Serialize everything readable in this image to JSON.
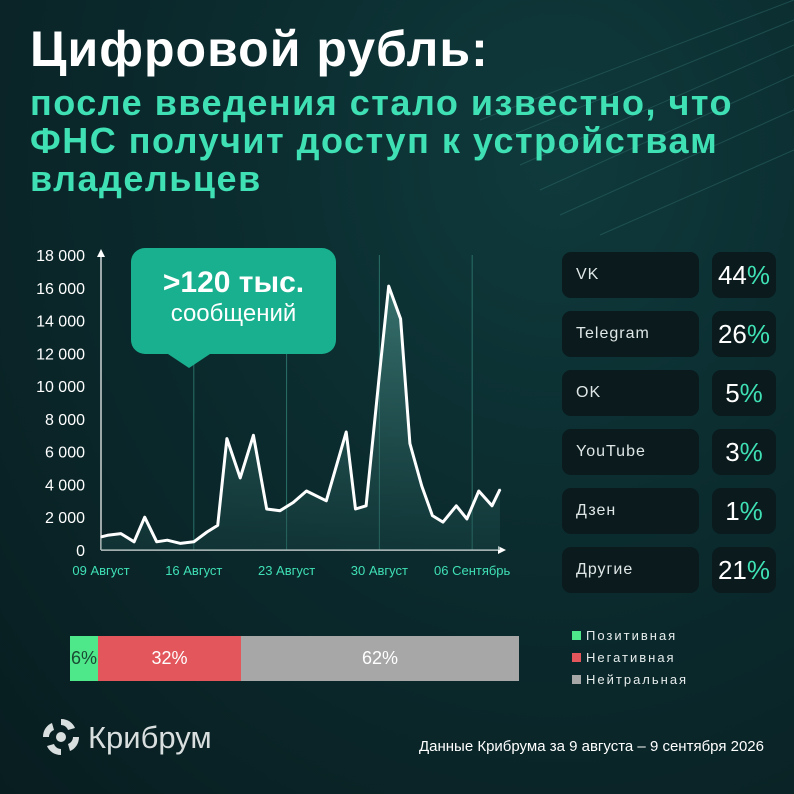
{
  "title": "Цифровой рубль:",
  "subtitle": "после введения стало известно, что ФНС получит доступ к устройствам владельцев",
  "callout": {
    "main": ">120 тыс.",
    "sub": "сообщений"
  },
  "colors": {
    "accent": "#3fe0b4",
    "callout": "#18b08e",
    "positive": "#4ee88a",
    "negative": "#e2565c",
    "neutral": "#a7a7a7"
  },
  "chart_data": {
    "type": "area",
    "title": "",
    "xlabel": "",
    "ylabel": "",
    "ylim": [
      0,
      18000
    ],
    "yticks": [
      0,
      2000,
      4000,
      6000,
      8000,
      10000,
      12000,
      14000,
      16000,
      18000
    ],
    "ytick_labels": [
      "0",
      "2 000",
      "4 000",
      "6 000",
      "8 000",
      "10 000",
      "12 000",
      "14 000",
      "16 000",
      "18 000"
    ],
    "xtick_labels": [
      "09 Август",
      "16 Август",
      "23 Август",
      "30 Август",
      "06 Сентябрь"
    ],
    "xtick_days": [
      0,
      7,
      14,
      21,
      28
    ],
    "grid": "vertical",
    "series": [
      {
        "days": [
          0,
          0.5,
          1.5,
          2.5,
          3.3,
          4.2,
          5,
          6,
          7,
          8,
          8.8,
          9.5,
          10.5,
          11.5,
          12.5,
          13.5,
          14.5,
          15.5,
          17,
          18.5,
          19.2,
          20,
          21,
          21.7,
          22.6,
          23.3,
          24.2,
          25,
          25.8,
          26.8,
          27.6,
          28.5,
          29.5,
          30.1
        ],
        "values": [
          800,
          900,
          1000,
          500,
          2000,
          500,
          600,
          400,
          500,
          1100,
          1500,
          6800,
          4400,
          7000,
          2500,
          2400,
          2900,
          3600,
          3000,
          7200,
          2500,
          2700,
          10700,
          16100,
          14100,
          6500,
          3900,
          2100,
          1700,
          2700,
          1900,
          3600,
          2700,
          3700
        ]
      }
    ]
  },
  "platforms": [
    {
      "name": "VK",
      "value": "44",
      "unit": "%"
    },
    {
      "name": "Telegram",
      "value": "26",
      "unit": "%"
    },
    {
      "name": "OK",
      "value": "5",
      "unit": "%"
    },
    {
      "name": "YouTube",
      "value": "3",
      "unit": "%"
    },
    {
      "name": "Дзен",
      "value": "1",
      "unit": "%"
    },
    {
      "name": "Другие",
      "value": "21",
      "unit": "%"
    }
  ],
  "sentiment": {
    "segments": [
      {
        "label": "6%",
        "value": 6
      },
      {
        "label": "32%",
        "value": 32
      },
      {
        "label": "62%",
        "value": 62
      }
    ],
    "legend": [
      "Позитивная",
      "Негативная",
      "Нейтральная"
    ]
  },
  "logo": {
    "text": "Крибрум",
    "icon": "kribrum-logo-icon"
  },
  "source": "Данные Крибрума за 9 августа – 9 сентября 2026"
}
